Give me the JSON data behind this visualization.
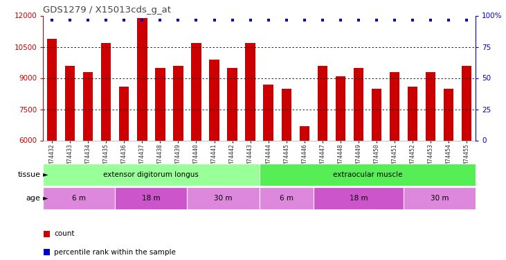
{
  "title": "GDS1279 / X15013cds_g_at",
  "samples": [
    "GSM74432",
    "GSM74433",
    "GSM74434",
    "GSM74435",
    "GSM74436",
    "GSM74437",
    "GSM74438",
    "GSM74439",
    "GSM74440",
    "GSM74441",
    "GSM74442",
    "GSM74443",
    "GSM74444",
    "GSM74445",
    "GSM74446",
    "GSM74447",
    "GSM74448",
    "GSM74449",
    "GSM74450",
    "GSM74451",
    "GSM74452",
    "GSM74453",
    "GSM74454",
    "GSM74455"
  ],
  "counts": [
    10900,
    9600,
    9300,
    10700,
    8600,
    11900,
    9500,
    9600,
    10700,
    9900,
    9500,
    10700,
    8700,
    8500,
    6700,
    9600,
    9100,
    9500,
    8500,
    9300,
    8600,
    9300,
    8500,
    9600
  ],
  "bar_color": "#cc0000",
  "dot_color": "#0000cc",
  "ylim_left": [
    6000,
    12000
  ],
  "ylim_right": [
    0,
    100
  ],
  "yticks_left": [
    6000,
    7500,
    9000,
    10500,
    12000
  ],
  "ytick_labels_left": [
    "6000",
    "7500",
    "9000",
    "10500",
    "12000"
  ],
  "yticks_right": [
    0,
    25,
    50,
    75,
    100
  ],
  "ytick_labels_right": [
    "0",
    "25",
    "50",
    "75",
    "100%"
  ],
  "tissue_groups": [
    {
      "label": "extensor digitorum longus",
      "start": 0,
      "end": 12,
      "color": "#99ff99"
    },
    {
      "label": "extraocular muscle",
      "start": 12,
      "end": 24,
      "color": "#55ee55"
    }
  ],
  "age_groups": [
    {
      "label": "6 m",
      "start": 0,
      "end": 4,
      "color": "#dd88dd"
    },
    {
      "label": "18 m",
      "start": 4,
      "end": 8,
      "color": "#cc55cc"
    },
    {
      "label": "30 m",
      "start": 8,
      "end": 12,
      "color": "#dd88dd"
    },
    {
      "label": "6 m",
      "start": 12,
      "end": 15,
      "color": "#dd88dd"
    },
    {
      "label": "18 m",
      "start": 15,
      "end": 20,
      "color": "#cc55cc"
    },
    {
      "label": "30 m",
      "start": 20,
      "end": 24,
      "color": "#dd88dd"
    }
  ],
  "tissue_row_label": "tissue",
  "age_row_label": "age",
  "legend_count_label": "count",
  "legend_pct_label": "percentile rank within the sample",
  "background_color": "#ffffff",
  "left_axis_color": "#cc0000",
  "right_axis_color": "#0000cc",
  "title_color": "#444444"
}
